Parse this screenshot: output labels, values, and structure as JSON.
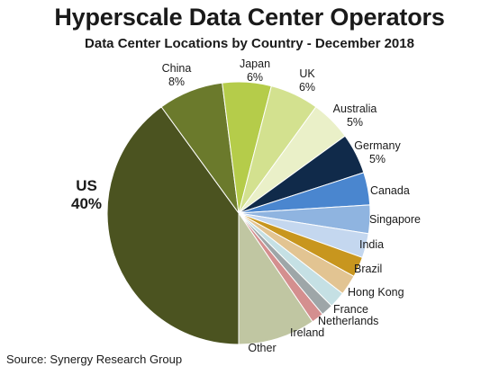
{
  "chart_data": {
    "type": "pie",
    "title": "Hyperscale Data Center Operators",
    "subtitle": "Data Center Locations by Country - December 2018",
    "source": "Source: Synergy Research Group",
    "start_angle_deg": 180,
    "direction": "clockwise",
    "slices": [
      {
        "name": "US",
        "label": "40%",
        "value": 40,
        "color": "#4b5320"
      },
      {
        "name": "China",
        "label": "8%",
        "value": 8,
        "color": "#6b7a2c"
      },
      {
        "name": "Japan",
        "label": "6%",
        "value": 6,
        "color": "#b5cc4a"
      },
      {
        "name": "UK",
        "label": "6%",
        "value": 6,
        "color": "#d3e18f"
      },
      {
        "name": "Australia",
        "label": "5%",
        "value": 5,
        "color": "#eaf0c8"
      },
      {
        "name": "Germany",
        "label": "5%",
        "value": 5,
        "color": "#102a4a"
      },
      {
        "name": "Canada",
        "label": "",
        "value": 4,
        "color": "#4a86cf"
      },
      {
        "name": "Singapore",
        "label": "",
        "value": 3.5,
        "color": "#8fb4e0"
      },
      {
        "name": "India",
        "label": "",
        "value": 3,
        "color": "#c4d7ef"
      },
      {
        "name": "Brazil",
        "label": "",
        "value": 2.5,
        "color": "#c8961e"
      },
      {
        "name": "Hong Kong",
        "label": "",
        "value": 2.5,
        "color": "#e2c492"
      },
      {
        "name": "France",
        "label": "",
        "value": 2,
        "color": "#c5e0e4"
      },
      {
        "name": "Netherlands",
        "label": "",
        "value": 1.5,
        "color": "#9ea6a8"
      },
      {
        "name": "Ireland",
        "label": "",
        "value": 1.5,
        "color": "#d48f8f"
      },
      {
        "name": "Other",
        "label": "",
        "value": 9.5,
        "color": "#c0c6a2"
      }
    ]
  }
}
